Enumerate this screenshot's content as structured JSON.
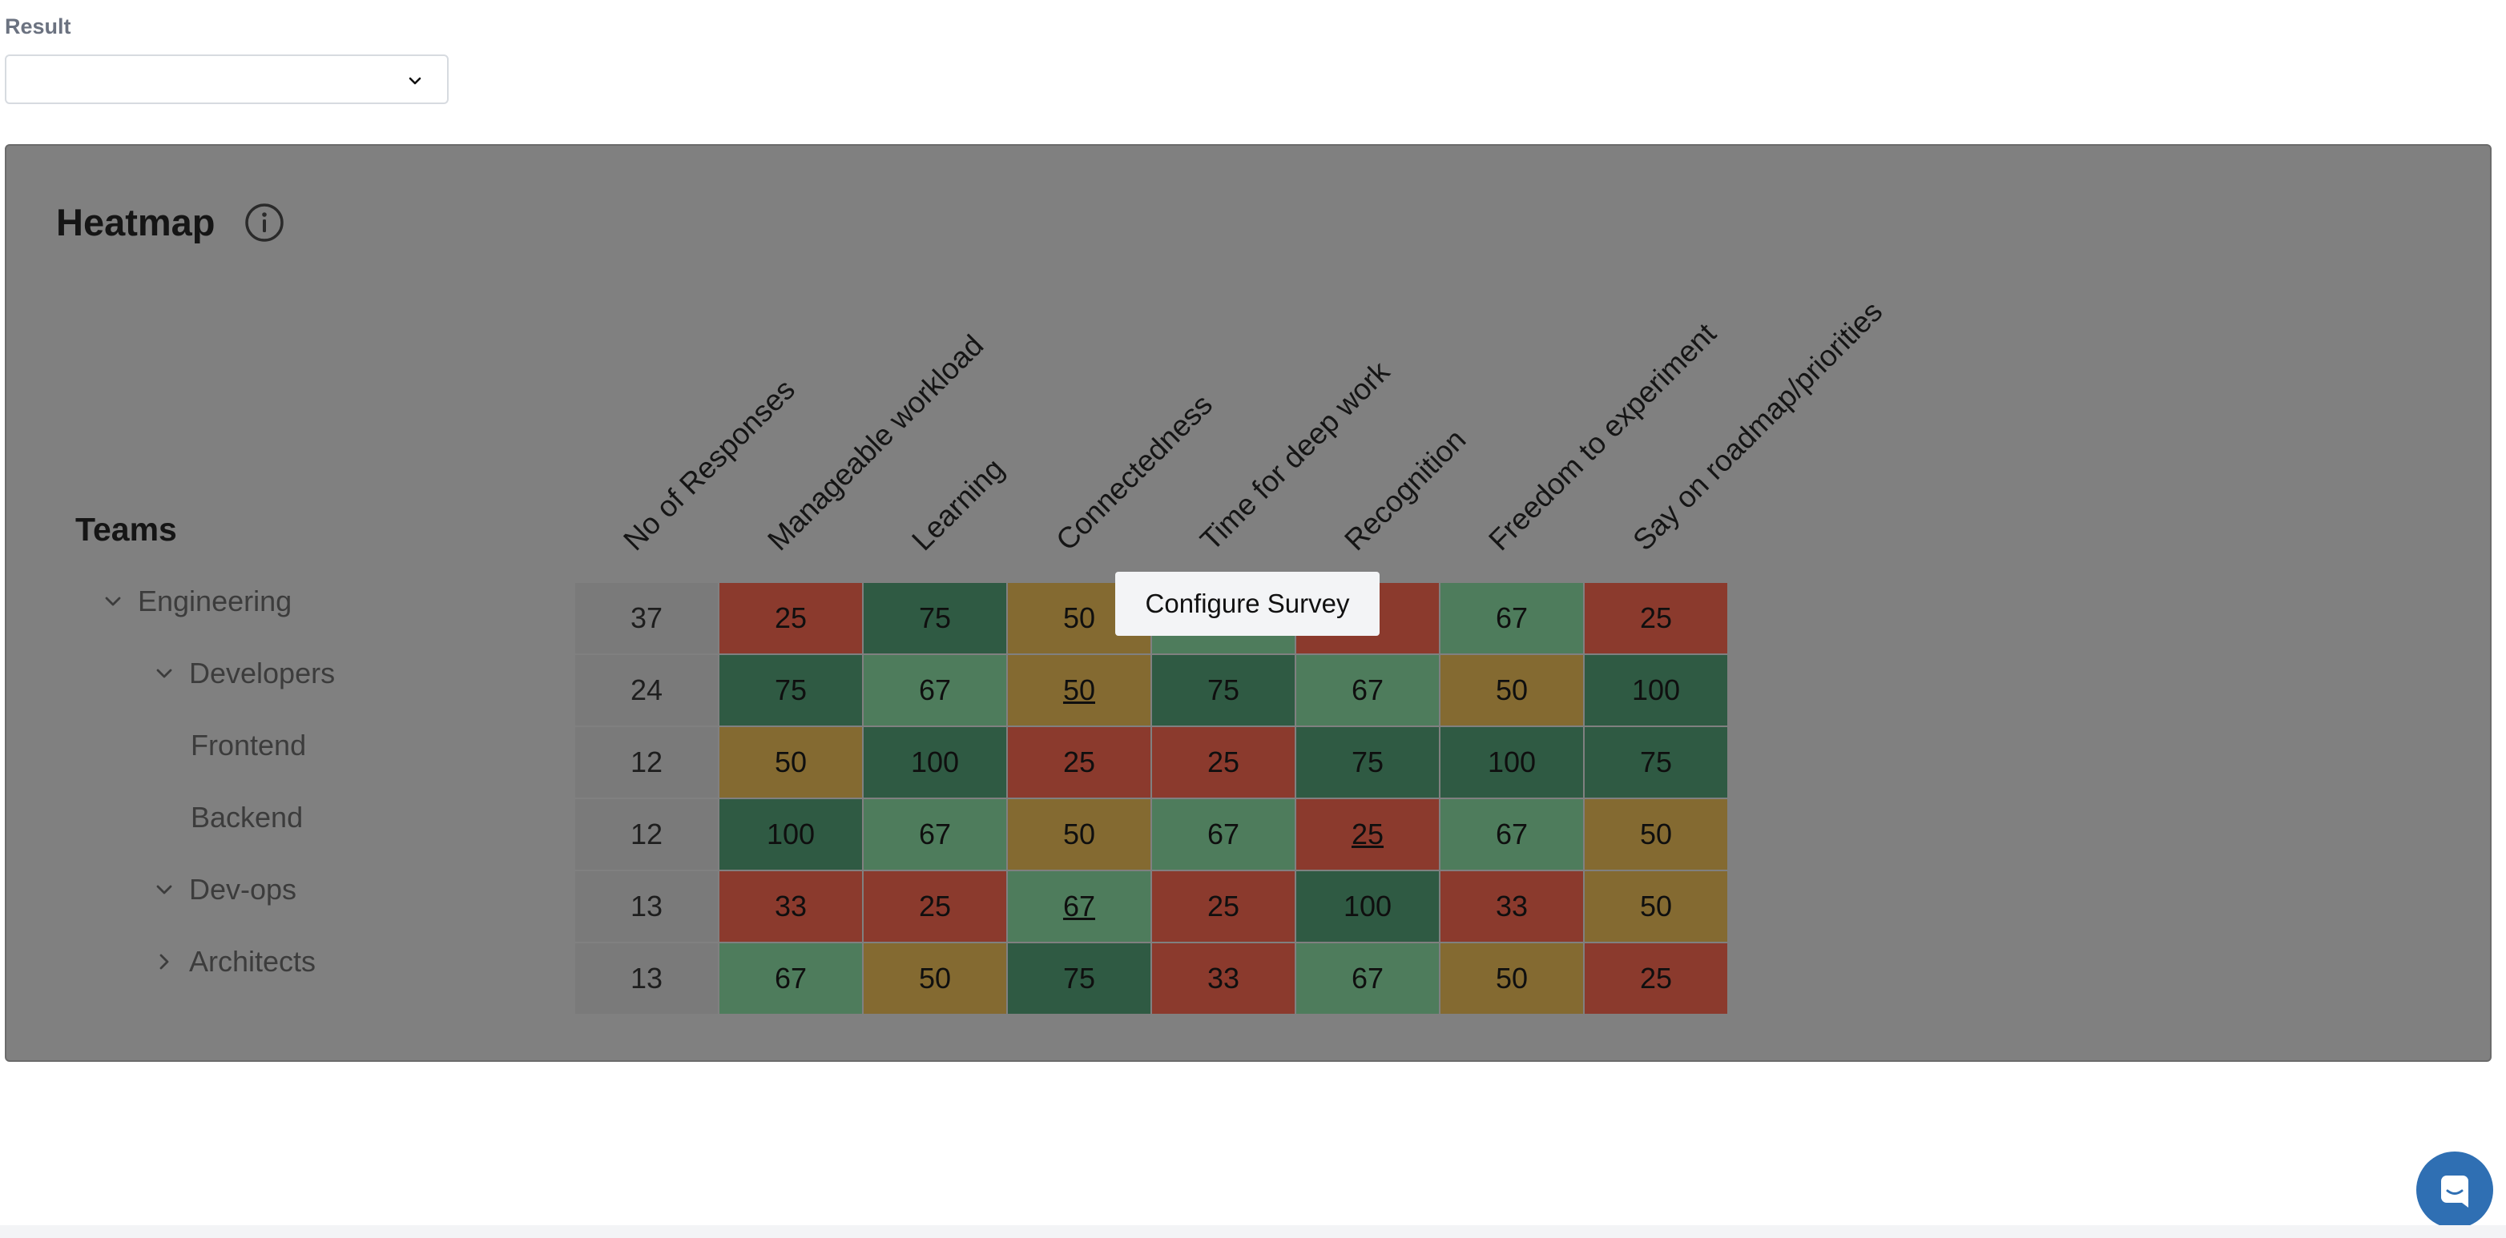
{
  "result": {
    "label": "Result",
    "value": ""
  },
  "heatmap": {
    "title": "Heatmap"
  },
  "teams": {
    "heading": "Teams",
    "items": [
      {
        "label": "Engineering",
        "toggle": "expanded"
      },
      {
        "label": "Developers",
        "toggle": "expanded"
      },
      {
        "label": "Frontend",
        "toggle": "none"
      },
      {
        "label": "Backend",
        "toggle": "none"
      },
      {
        "label": "Dev-ops",
        "toggle": "expanded"
      },
      {
        "label": "Architects",
        "toggle": "collapsed"
      }
    ]
  },
  "columns": [
    "No of Responses",
    "Manageable workload",
    "Learning",
    "Connectedness",
    "Time for deep work",
    "Recognition",
    "Freedom to experiment",
    "Say on roadmap/priorities"
  ],
  "rows": [
    {
      "count": "37",
      "scores": [
        {
          "v": "25",
          "c": "red"
        },
        {
          "v": "75",
          "c": "dgreen"
        },
        {
          "v": "50",
          "c": "orange"
        },
        {
          "v": "",
          "c": "lgreen"
        },
        {
          "v": "",
          "c": "red"
        },
        {
          "v": "67",
          "c": "lgreen"
        },
        {
          "v": "25",
          "c": "red"
        }
      ]
    },
    {
      "count": "24",
      "scores": [
        {
          "v": "75",
          "c": "dgreen"
        },
        {
          "v": "67",
          "c": "lgreen"
        },
        {
          "v": "50",
          "c": "orange",
          "u": true
        },
        {
          "v": "75",
          "c": "dgreen"
        },
        {
          "v": "67",
          "c": "lgreen"
        },
        {
          "v": "50",
          "c": "orange"
        },
        {
          "v": "100",
          "c": "dgreen"
        }
      ]
    },
    {
      "count": "12",
      "scores": [
        {
          "v": "50",
          "c": "orange"
        },
        {
          "v": "100",
          "c": "dgreen"
        },
        {
          "v": "25",
          "c": "red"
        },
        {
          "v": "25",
          "c": "red"
        },
        {
          "v": "75",
          "c": "dgreen"
        },
        {
          "v": "100",
          "c": "dgreen"
        },
        {
          "v": "75",
          "c": "dgreen"
        }
      ]
    },
    {
      "count": "12",
      "scores": [
        {
          "v": "100",
          "c": "dgreen"
        },
        {
          "v": "67",
          "c": "lgreen"
        },
        {
          "v": "50",
          "c": "orange"
        },
        {
          "v": "67",
          "c": "lgreen"
        },
        {
          "v": "25",
          "c": "red",
          "u": true
        },
        {
          "v": "67",
          "c": "lgreen"
        },
        {
          "v": "50",
          "c": "orange"
        }
      ]
    },
    {
      "count": "13",
      "scores": [
        {
          "v": "33",
          "c": "red"
        },
        {
          "v": "25",
          "c": "red"
        },
        {
          "v": "67",
          "c": "lgreen",
          "u": true
        },
        {
          "v": "25",
          "c": "red"
        },
        {
          "v": "100",
          "c": "dgreen"
        },
        {
          "v": "33",
          "c": "red"
        },
        {
          "v": "50",
          "c": "orange"
        }
      ]
    },
    {
      "count": "13",
      "scores": [
        {
          "v": "67",
          "c": "lgreen"
        },
        {
          "v": "50",
          "c": "orange"
        },
        {
          "v": "75",
          "c": "dgreen"
        },
        {
          "v": "33",
          "c": "red"
        },
        {
          "v": "67",
          "c": "lgreen"
        },
        {
          "v": "50",
          "c": "orange"
        },
        {
          "v": "25",
          "c": "red"
        }
      ]
    }
  ],
  "tooltip": {
    "text": "Configure Survey"
  },
  "colors": {
    "overlay": "#808080",
    "red": "#8b3a2d",
    "orange": "#846a31",
    "light_green": "#4e7c5c",
    "dark_green": "#2f5a43",
    "chat_button": "#2f6fb3"
  },
  "icons": {
    "select_chevron": "chevron-down-icon",
    "info": "info-icon",
    "tree_expanded": "chevron-down-icon",
    "tree_collapsed": "chevron-right-icon",
    "chat": "chat-icon"
  }
}
